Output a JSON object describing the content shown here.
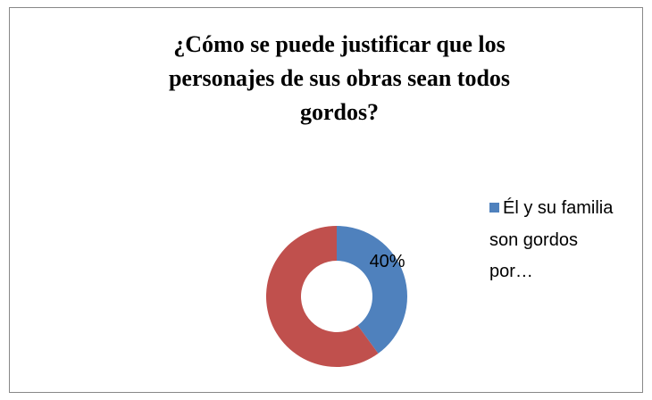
{
  "chart_data": {
    "type": "donut",
    "title": "¿Cómo se puede justificar que los personajes de sus obras sean todos gordos?",
    "categories": [
      "Él y su familia son gordos por…",
      null
    ],
    "values": [
      40,
      60
    ],
    "value_labels": [
      "40%",
      null
    ],
    "colors": [
      "#4f81bd",
      "#c0504d"
    ],
    "legend": "right"
  }
}
